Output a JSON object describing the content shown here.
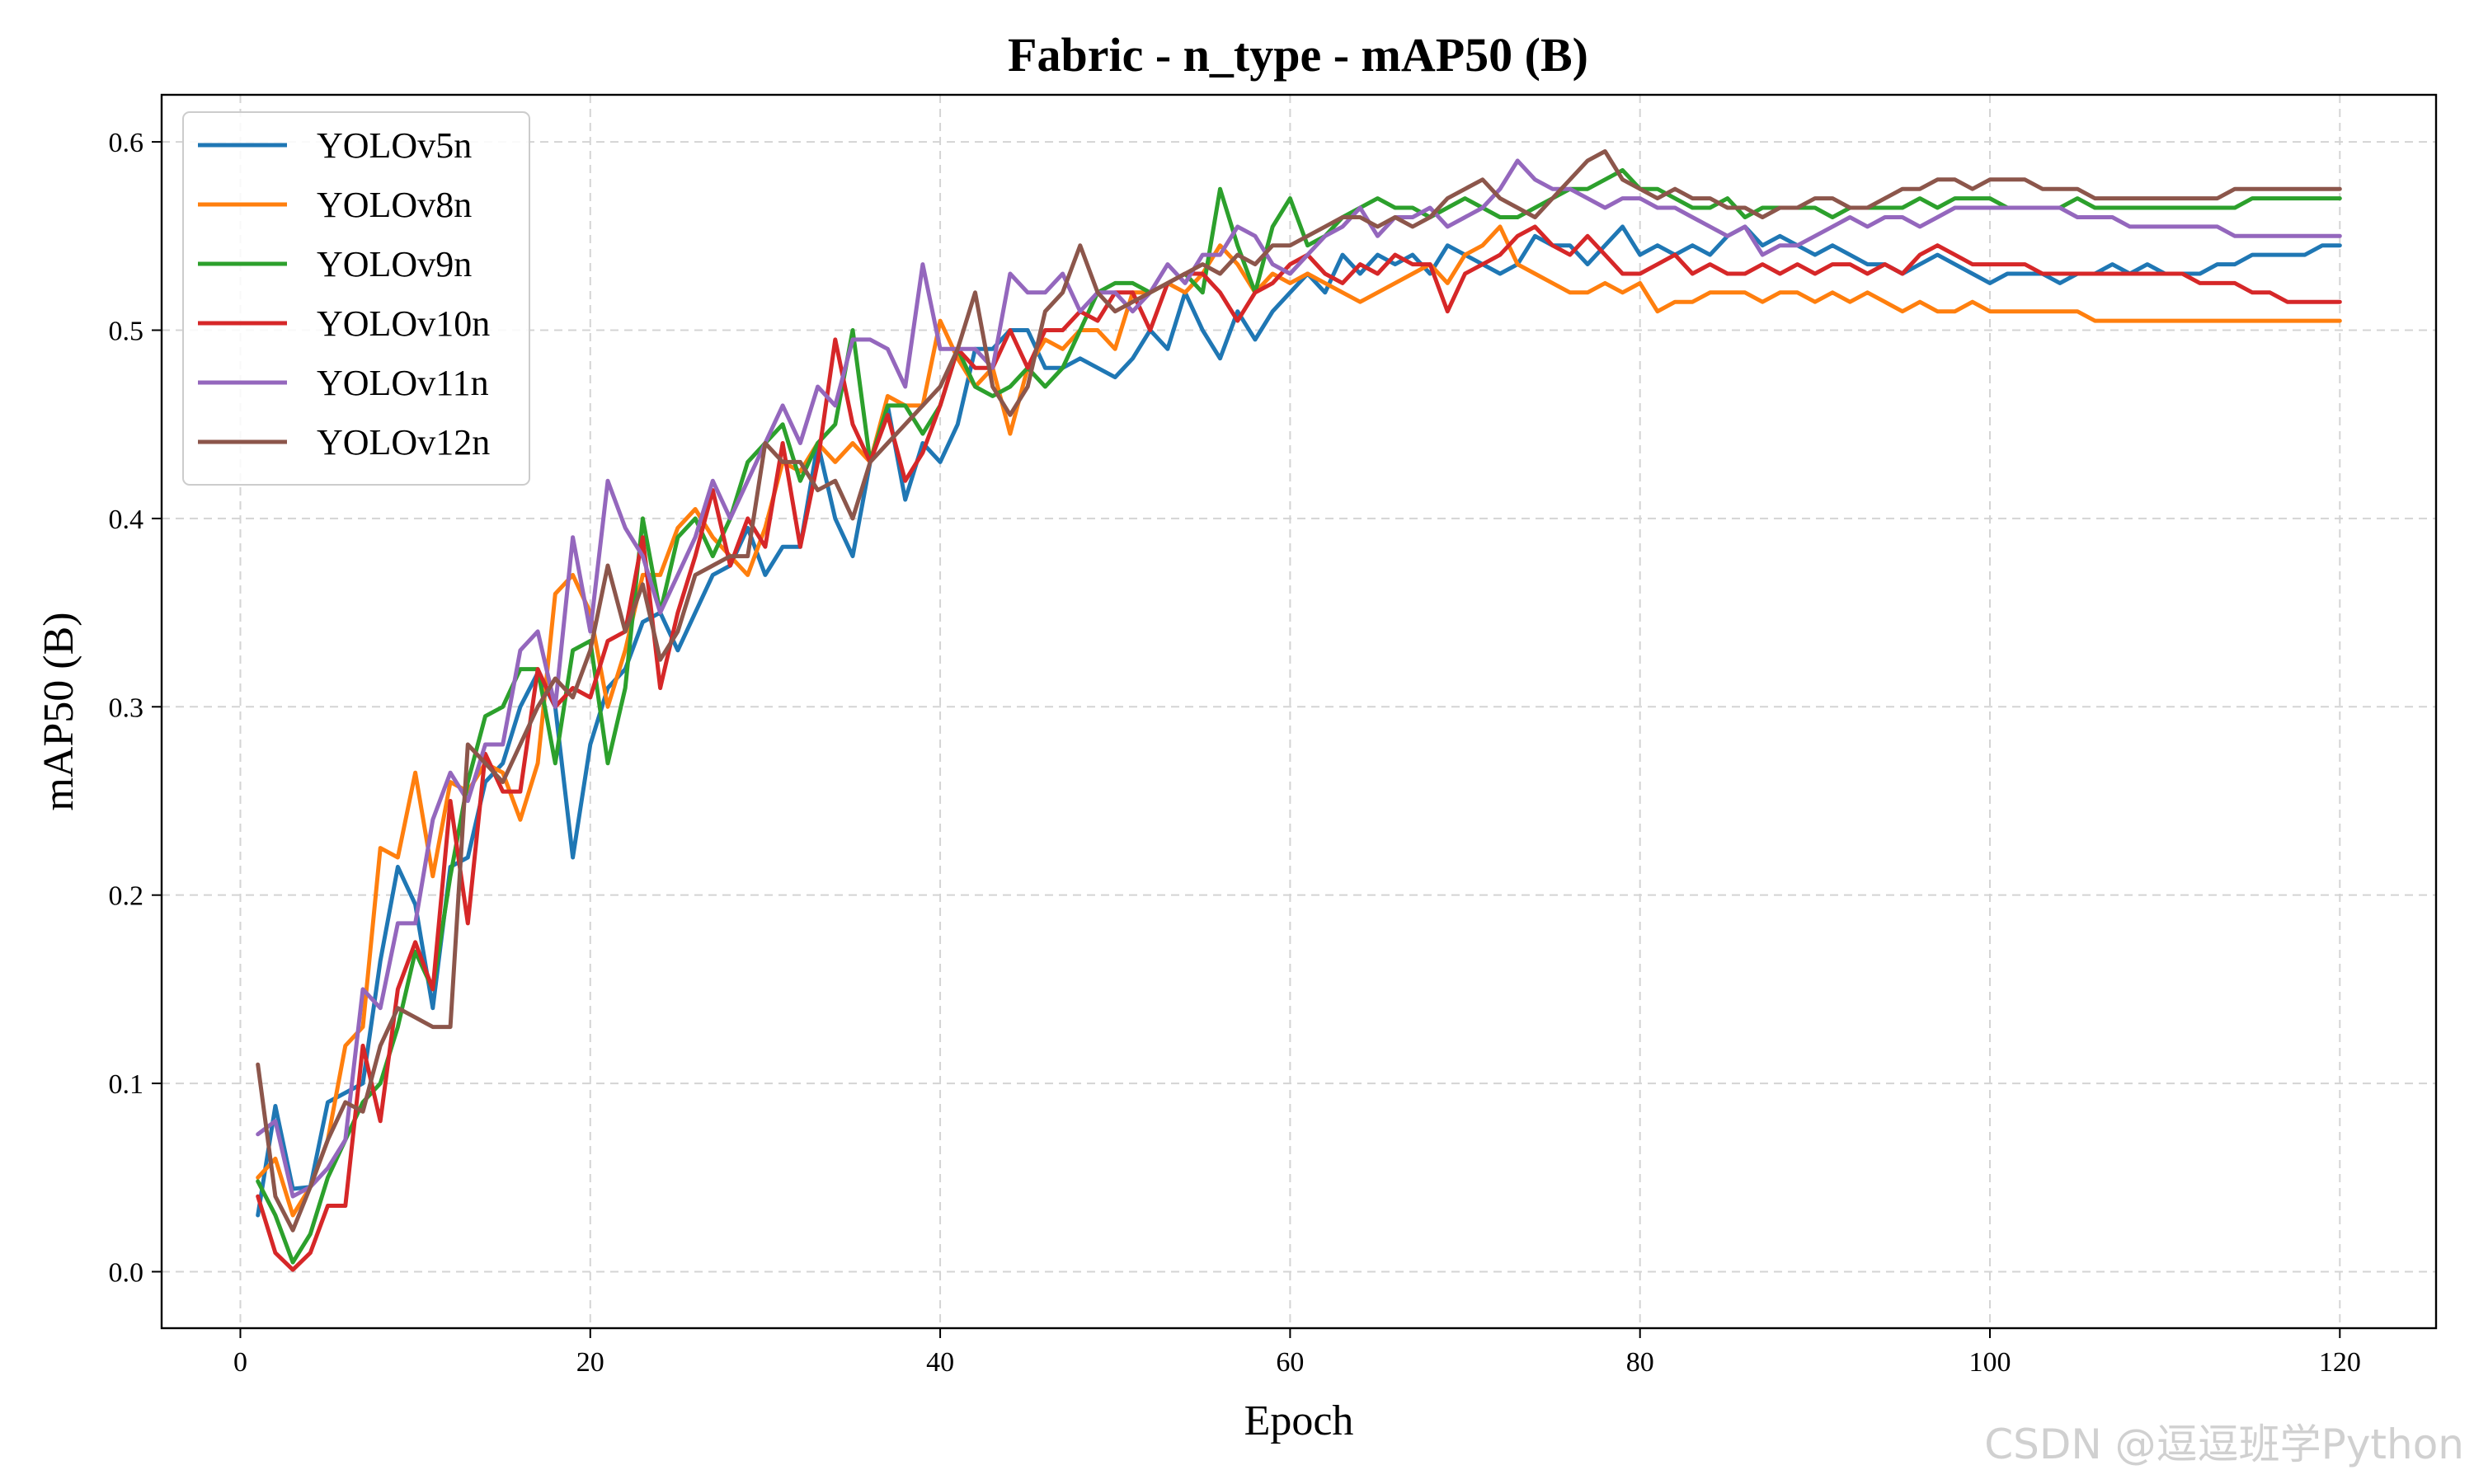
{
  "chart_data": {
    "type": "line",
    "title": "Fabric - n_type - mAP50 (B)",
    "xlabel": "Epoch",
    "ylabel": "mAP50 (B)",
    "xlim": [
      -4.5,
      125.5
    ],
    "ylim": [
      -0.03,
      0.625
    ],
    "xticks": [
      0,
      20,
      40,
      60,
      80,
      100,
      120
    ],
    "yticks": [
      0.0,
      0.1,
      0.2,
      0.3,
      0.4,
      0.5,
      0.6
    ],
    "xtick_labels": [
      "0",
      "20",
      "40",
      "60",
      "80",
      "100",
      "120"
    ],
    "ytick_labels": [
      "0.0",
      "0.1",
      "0.2",
      "0.3",
      "0.4",
      "0.5",
      "0.6"
    ],
    "grid": true,
    "legend_position": "upper-left",
    "x_start": 1,
    "series": [
      {
        "name": "YOLOv5n",
        "color": "#1f77b4",
        "values": [
          0.03,
          0.088,
          0.044,
          0.045,
          0.09,
          0.095,
          0.1,
          0.165,
          0.215,
          0.195,
          0.14,
          0.215,
          0.22,
          0.26,
          0.27,
          0.3,
          0.318,
          0.3,
          0.22,
          0.28,
          0.31,
          0.32,
          0.345,
          0.35,
          0.33,
          0.35,
          0.37,
          0.375,
          0.395,
          0.37,
          0.385,
          0.385,
          0.44,
          0.4,
          0.38,
          0.43,
          0.46,
          0.41,
          0.44,
          0.43,
          0.45,
          0.49,
          0.49,
          0.5,
          0.5,
          0.48,
          0.48,
          0.485,
          0.48,
          0.475,
          0.485,
          0.5,
          0.49,
          0.52,
          0.5,
          0.485,
          0.51,
          0.495,
          0.51,
          0.52,
          0.53,
          0.52,
          0.54,
          0.53,
          0.54,
          0.535,
          0.54,
          0.53,
          0.545,
          0.54,
          0.535,
          0.53,
          0.535,
          0.55,
          0.545,
          0.545,
          0.535,
          0.545,
          0.555,
          0.54,
          0.545,
          0.54,
          0.545,
          0.54,
          0.55,
          0.555,
          0.545,
          0.55,
          0.545,
          0.54,
          0.545,
          0.54,
          0.535,
          0.535,
          0.53,
          0.535,
          0.54,
          0.535,
          0.53,
          0.525,
          0.53,
          0.53,
          0.53,
          0.525,
          0.53,
          0.53,
          0.535,
          0.53,
          0.535,
          0.53,
          0.53,
          0.53,
          0.535,
          0.535,
          0.54,
          0.54,
          0.54,
          0.54,
          0.545,
          0.545
        ]
      },
      {
        "name": "YOLOv8n",
        "color": "#ff7f0e",
        "values": [
          0.05,
          0.06,
          0.03,
          0.045,
          0.07,
          0.12,
          0.13,
          0.225,
          0.22,
          0.265,
          0.21,
          0.26,
          0.255,
          0.27,
          0.265,
          0.24,
          0.27,
          0.36,
          0.37,
          0.35,
          0.3,
          0.33,
          0.37,
          0.37,
          0.395,
          0.405,
          0.39,
          0.38,
          0.37,
          0.395,
          0.43,
          0.425,
          0.44,
          0.43,
          0.44,
          0.43,
          0.465,
          0.46,
          0.46,
          0.505,
          0.485,
          0.47,
          0.48,
          0.445,
          0.48,
          0.495,
          0.49,
          0.5,
          0.5,
          0.49,
          0.52,
          0.52,
          0.525,
          0.52,
          0.53,
          0.545,
          0.535,
          0.52,
          0.53,
          0.525,
          0.53,
          0.525,
          0.52,
          0.515,
          0.52,
          0.525,
          0.53,
          0.535,
          0.525,
          0.54,
          0.545,
          0.555,
          0.535,
          0.53,
          0.525,
          0.52,
          0.52,
          0.525,
          0.52,
          0.525,
          0.51,
          0.515,
          0.515,
          0.52,
          0.52,
          0.52,
          0.515,
          0.52,
          0.52,
          0.515,
          0.52,
          0.515,
          0.52,
          0.515,
          0.51,
          0.515,
          0.51,
          0.51,
          0.515,
          0.51,
          0.51,
          0.51,
          0.51,
          0.51,
          0.51,
          0.505,
          0.505,
          0.505,
          0.505,
          0.505,
          0.505,
          0.505,
          0.505,
          0.505,
          0.505,
          0.505,
          0.505,
          0.505,
          0.505,
          0.505
        ]
      },
      {
        "name": "YOLOv9n",
        "color": "#2ca02c",
        "values": [
          0.048,
          0.03,
          0.005,
          0.02,
          0.05,
          0.07,
          0.09,
          0.1,
          0.13,
          0.17,
          0.15,
          0.21,
          0.26,
          0.295,
          0.3,
          0.32,
          0.32,
          0.27,
          0.33,
          0.335,
          0.27,
          0.31,
          0.4,
          0.35,
          0.39,
          0.4,
          0.38,
          0.4,
          0.43,
          0.44,
          0.45,
          0.42,
          0.44,
          0.45,
          0.5,
          0.43,
          0.46,
          0.46,
          0.445,
          0.46,
          0.49,
          0.47,
          0.465,
          0.47,
          0.48,
          0.47,
          0.48,
          0.5,
          0.52,
          0.525,
          0.525,
          0.52,
          0.525,
          0.53,
          0.52,
          0.575,
          0.545,
          0.52,
          0.555,
          0.57,
          0.545,
          0.55,
          0.56,
          0.565,
          0.57,
          0.565,
          0.565,
          0.56,
          0.565,
          0.57,
          0.565,
          0.56,
          0.56,
          0.565,
          0.57,
          0.575,
          0.575,
          0.58,
          0.585,
          0.575,
          0.575,
          0.57,
          0.565,
          0.565,
          0.57,
          0.56,
          0.565,
          0.565,
          0.565,
          0.565,
          0.56,
          0.565,
          0.565,
          0.565,
          0.565,
          0.57,
          0.565,
          0.57,
          0.57,
          0.57,
          0.565,
          0.565,
          0.565,
          0.565,
          0.57,
          0.565,
          0.565,
          0.565,
          0.565,
          0.565,
          0.565,
          0.565,
          0.565,
          0.565,
          0.57,
          0.57,
          0.57,
          0.57,
          0.57,
          0.57
        ]
      },
      {
        "name": "YOLOv10n",
        "color": "#d62728",
        "values": [
          0.04,
          0.01,
          0.001,
          0.01,
          0.035,
          0.035,
          0.12,
          0.08,
          0.15,
          0.175,
          0.15,
          0.25,
          0.185,
          0.275,
          0.255,
          0.255,
          0.32,
          0.3,
          0.31,
          0.305,
          0.335,
          0.34,
          0.39,
          0.31,
          0.35,
          0.38,
          0.415,
          0.375,
          0.4,
          0.385,
          0.44,
          0.385,
          0.43,
          0.495,
          0.45,
          0.43,
          0.455,
          0.42,
          0.435,
          0.46,
          0.49,
          0.48,
          0.48,
          0.5,
          0.48,
          0.5,
          0.5,
          0.51,
          0.505,
          0.52,
          0.52,
          0.5,
          0.525,
          0.53,
          0.53,
          0.52,
          0.505,
          0.52,
          0.525,
          0.535,
          0.54,
          0.53,
          0.525,
          0.535,
          0.53,
          0.54,
          0.535,
          0.535,
          0.51,
          0.53,
          0.535,
          0.54,
          0.55,
          0.555,
          0.545,
          0.54,
          0.55,
          0.54,
          0.53,
          0.53,
          0.535,
          0.54,
          0.53,
          0.535,
          0.53,
          0.53,
          0.535,
          0.53,
          0.535,
          0.53,
          0.535,
          0.535,
          0.53,
          0.535,
          0.53,
          0.54,
          0.545,
          0.54,
          0.535,
          0.535,
          0.535,
          0.535,
          0.53,
          0.53,
          0.53,
          0.53,
          0.53,
          0.53,
          0.53,
          0.53,
          0.53,
          0.525,
          0.525,
          0.525,
          0.52,
          0.52,
          0.515,
          0.515,
          0.515,
          0.515
        ]
      },
      {
        "name": "YOLOv11n",
        "color": "#9467bd",
        "values": [
          0.073,
          0.08,
          0.04,
          0.045,
          0.055,
          0.07,
          0.15,
          0.14,
          0.185,
          0.185,
          0.24,
          0.265,
          0.25,
          0.28,
          0.28,
          0.33,
          0.34,
          0.3,
          0.39,
          0.34,
          0.42,
          0.395,
          0.38,
          0.35,
          0.37,
          0.39,
          0.42,
          0.4,
          0.42,
          0.44,
          0.46,
          0.44,
          0.47,
          0.46,
          0.495,
          0.495,
          0.49,
          0.47,
          0.535,
          0.49,
          0.49,
          0.49,
          0.48,
          0.53,
          0.52,
          0.52,
          0.53,
          0.51,
          0.52,
          0.52,
          0.51,
          0.52,
          0.535,
          0.525,
          0.54,
          0.54,
          0.555,
          0.55,
          0.535,
          0.53,
          0.54,
          0.55,
          0.555,
          0.565,
          0.55,
          0.56,
          0.56,
          0.565,
          0.555,
          0.56,
          0.565,
          0.575,
          0.59,
          0.58,
          0.575,
          0.575,
          0.57,
          0.565,
          0.57,
          0.57,
          0.565,
          0.565,
          0.56,
          0.555,
          0.55,
          0.555,
          0.54,
          0.545,
          0.545,
          0.55,
          0.555,
          0.56,
          0.555,
          0.56,
          0.56,
          0.555,
          0.56,
          0.565,
          0.565,
          0.565,
          0.565,
          0.565,
          0.565,
          0.565,
          0.56,
          0.56,
          0.56,
          0.555,
          0.555,
          0.555,
          0.555,
          0.555,
          0.555,
          0.55,
          0.55,
          0.55,
          0.55,
          0.55,
          0.55,
          0.55
        ]
      },
      {
        "name": "YOLOv12n",
        "color": "#8c564b",
        "values": [
          0.11,
          0.04,
          0.022,
          0.045,
          0.07,
          0.09,
          0.085,
          0.12,
          0.14,
          0.135,
          0.13,
          0.13,
          0.28,
          0.27,
          0.26,
          0.28,
          0.3,
          0.315,
          0.305,
          0.33,
          0.375,
          0.34,
          0.365,
          0.325,
          0.34,
          0.37,
          0.375,
          0.38,
          0.38,
          0.44,
          0.43,
          0.43,
          0.415,
          0.42,
          0.4,
          0.43,
          0.44,
          0.45,
          0.46,
          0.47,
          0.49,
          0.52,
          0.47,
          0.455,
          0.47,
          0.51,
          0.52,
          0.545,
          0.52,
          0.51,
          0.515,
          0.52,
          0.525,
          0.53,
          0.535,
          0.53,
          0.54,
          0.535,
          0.545,
          0.545,
          0.55,
          0.555,
          0.56,
          0.56,
          0.555,
          0.56,
          0.555,
          0.56,
          0.57,
          0.575,
          0.58,
          0.57,
          0.565,
          0.56,
          0.57,
          0.58,
          0.59,
          0.595,
          0.58,
          0.575,
          0.57,
          0.575,
          0.57,
          0.57,
          0.565,
          0.565,
          0.56,
          0.565,
          0.565,
          0.57,
          0.57,
          0.565,
          0.565,
          0.57,
          0.575,
          0.575,
          0.58,
          0.58,
          0.575,
          0.58,
          0.58,
          0.58,
          0.575,
          0.575,
          0.575,
          0.57,
          0.57,
          0.57,
          0.57,
          0.57,
          0.57,
          0.57,
          0.57,
          0.575,
          0.575,
          0.575,
          0.575,
          0.575,
          0.575,
          0.575
        ]
      }
    ]
  },
  "watermark": "CSDN @逗逗班学Python"
}
